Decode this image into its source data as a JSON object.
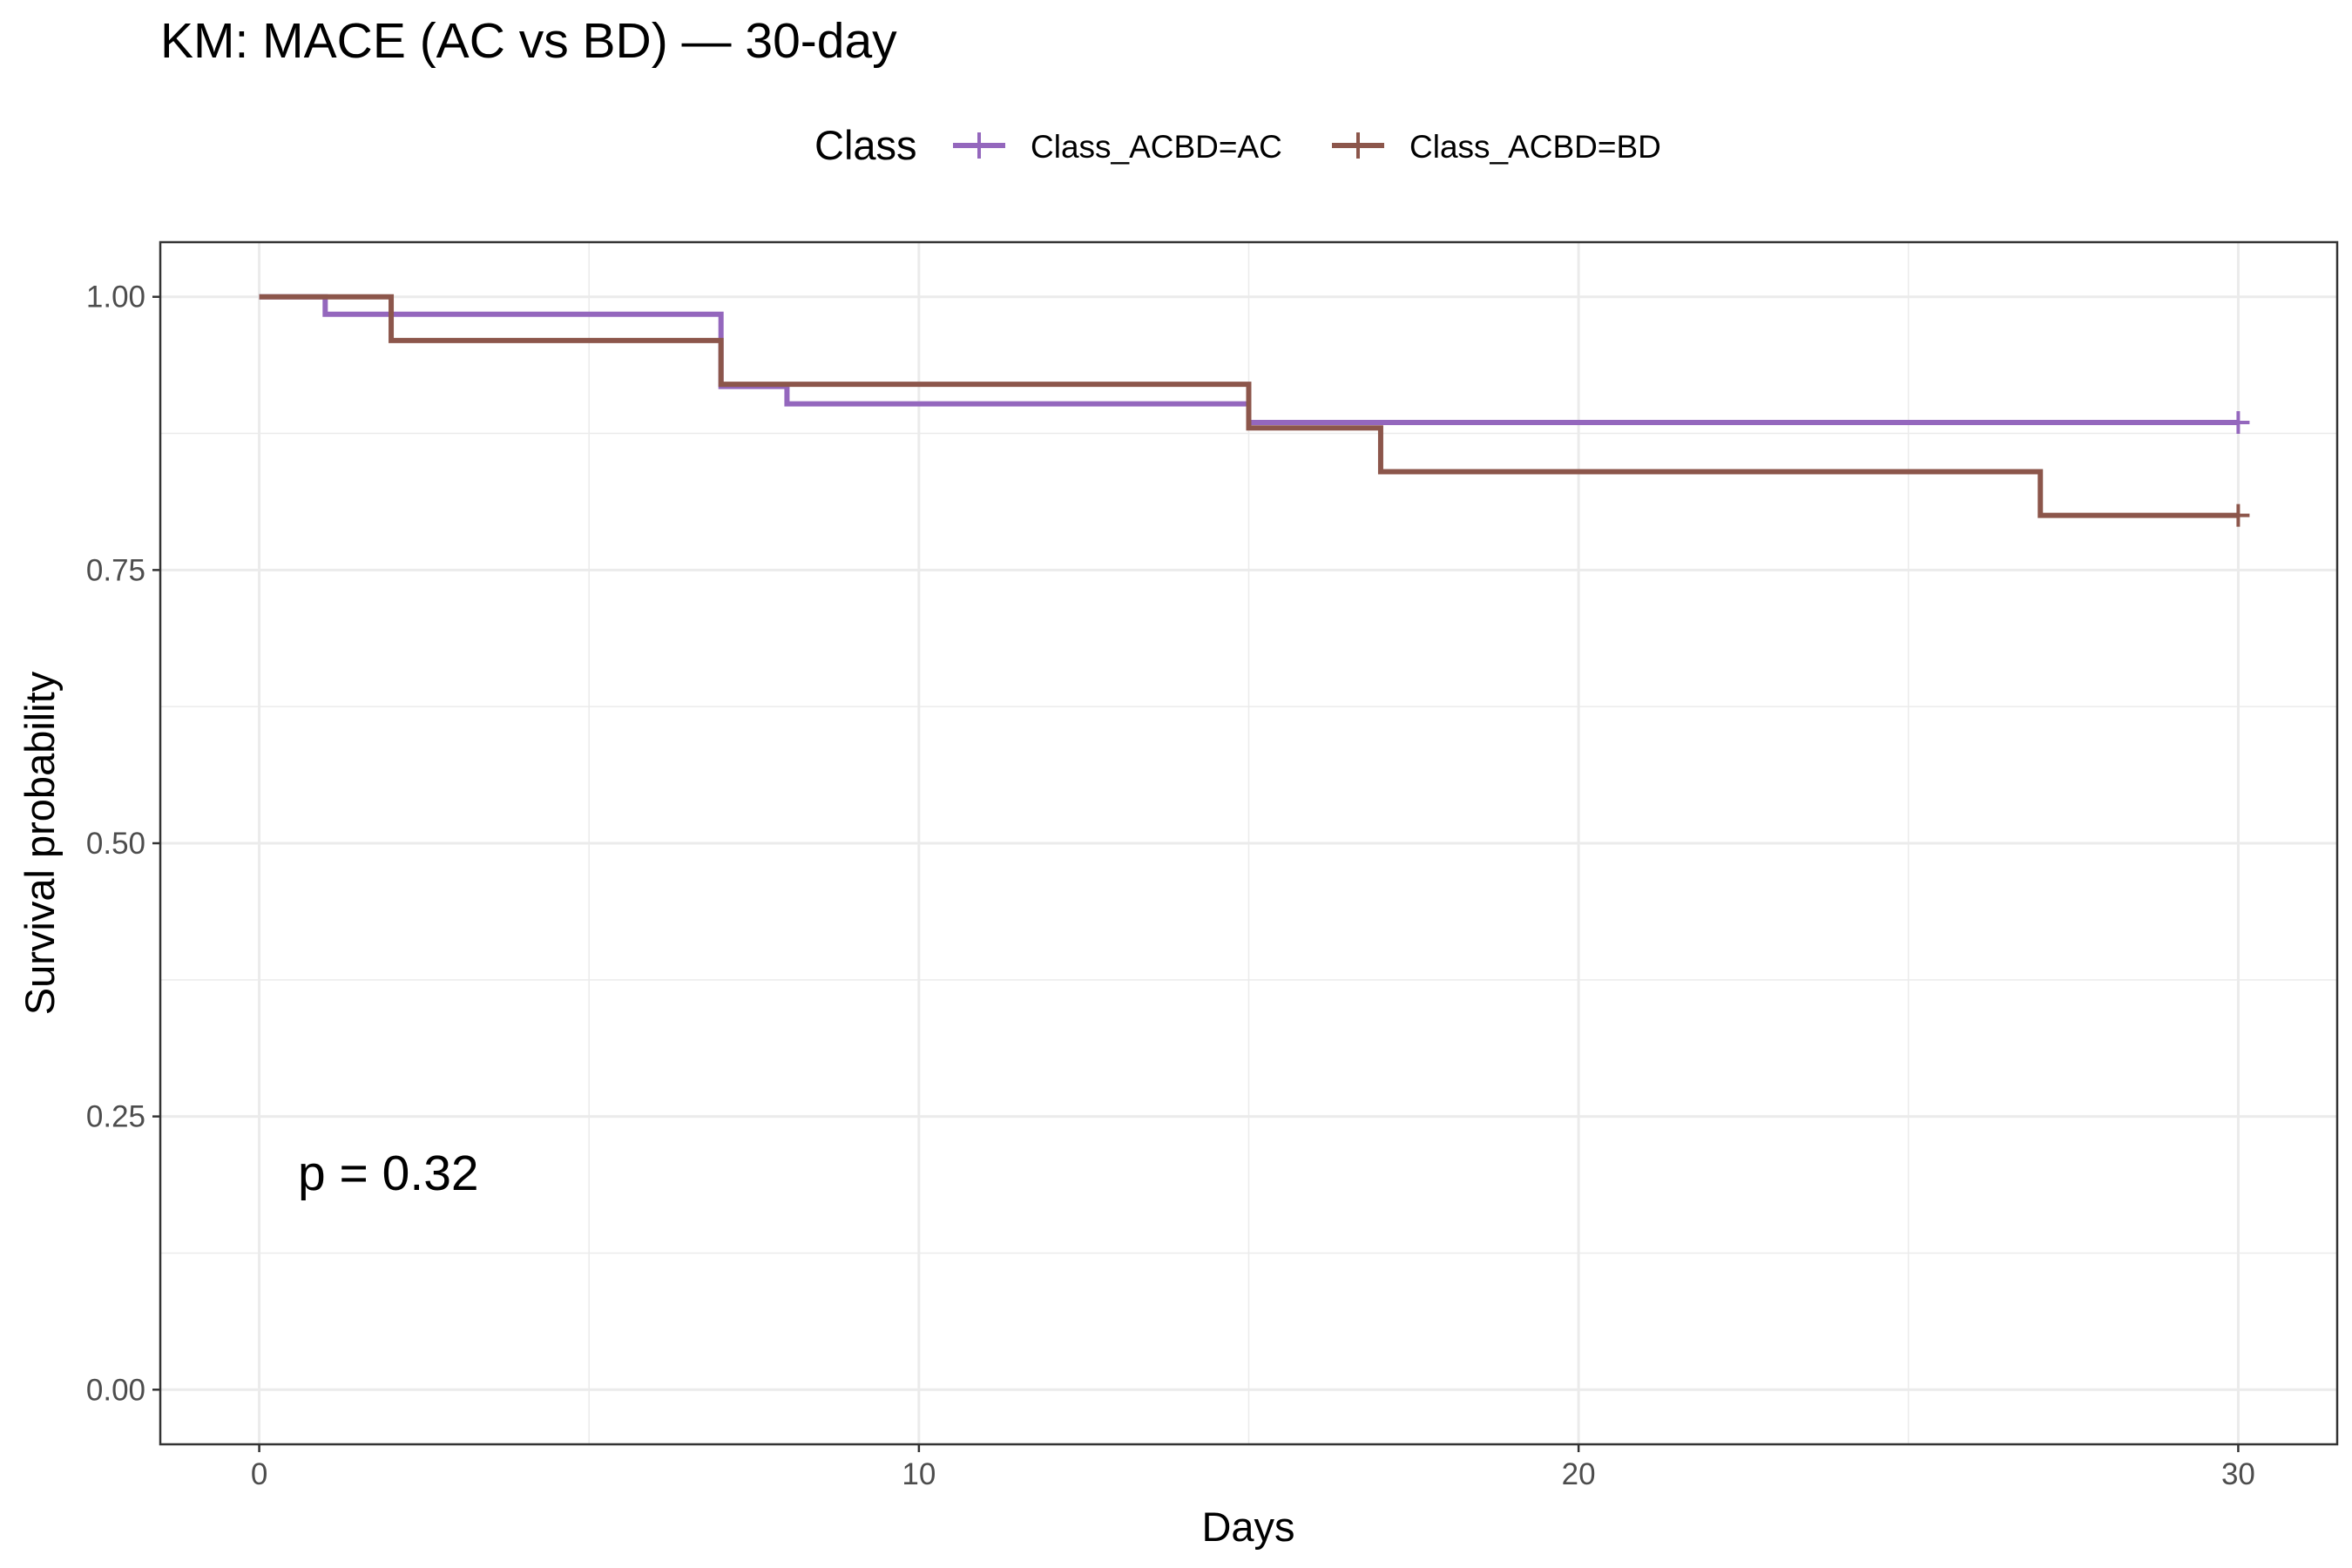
{
  "chart_data": {
    "type": "line",
    "subtype": "kaplan-meier-step",
    "title": "KM: MACE (AC vs BD) — 30-day",
    "xlabel": "Days",
    "ylabel": "Survival probability",
    "xlim": [
      -1.5,
      31.5
    ],
    "ylim": [
      -0.05,
      1.05
    ],
    "x_ticks": [
      0,
      10,
      20,
      30
    ],
    "x_tick_labels": [
      "0",
      "10",
      "20",
      "30"
    ],
    "y_ticks": [
      0,
      0.25,
      0.5,
      0.75,
      1.0
    ],
    "y_tick_labels": [
      "0.00",
      "0.25",
      "0.50",
      "0.75",
      "1.00"
    ],
    "grid": true,
    "legend": {
      "title": "Class",
      "placement": "top"
    },
    "annotation": "p = 0.32",
    "series": [
      {
        "name": "Class_ACBD=AC",
        "color": "#9467bd",
        "steps": [
          {
            "x": 0,
            "y": 1.0
          },
          {
            "x": 1,
            "y": 0.984
          },
          {
            "x": 7,
            "y": 0.918
          },
          {
            "x": 8,
            "y": 0.902
          },
          {
            "x": 15,
            "y": 0.885
          },
          {
            "x": 30,
            "y": 0.885
          }
        ],
        "censored": [
          {
            "x": 30,
            "y": 0.885
          }
        ]
      },
      {
        "name": "Class_ACBD=BD",
        "color": "#8c564b",
        "steps": [
          {
            "x": 0,
            "y": 1.0
          },
          {
            "x": 2,
            "y": 0.96
          },
          {
            "x": 7,
            "y": 0.92
          },
          {
            "x": 15,
            "y": 0.88
          },
          {
            "x": 17,
            "y": 0.84
          },
          {
            "x": 27,
            "y": 0.8
          },
          {
            "x": 30,
            "y": 0.8
          }
        ],
        "censored": [
          {
            "x": 30,
            "y": 0.8
          }
        ]
      }
    ]
  }
}
